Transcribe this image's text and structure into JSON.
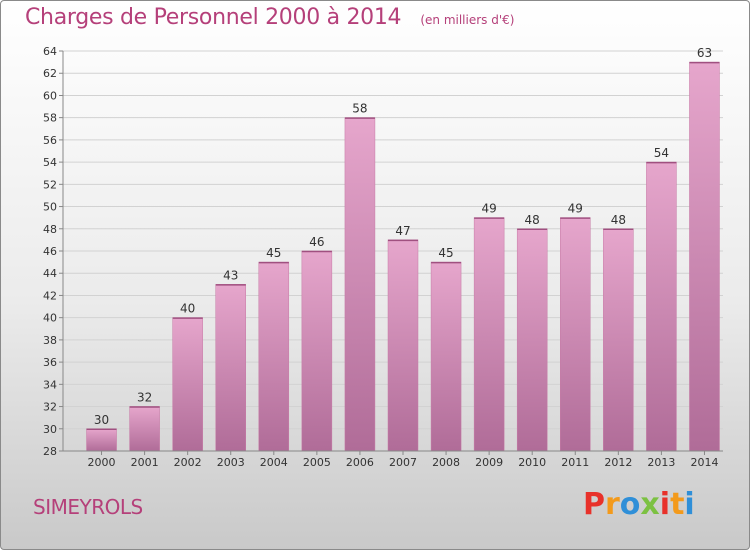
{
  "header": {
    "title": "Charges de Personnel 2000 à 2014",
    "subtitle": "(en milliers d'€)"
  },
  "footer": {
    "commune": "SIMEYROLS",
    "brand": "Proxiti"
  },
  "colors": {
    "accent": "#b5407a",
    "bar_top": "#e6a6cc",
    "bar_bottom": "#b06c98",
    "brand_letters": [
      "#e8312a",
      "#f39a1b",
      "#2f8fd8",
      "#7cc142",
      "#e8312a",
      "#f39a1b",
      "#2f8fd8"
    ]
  },
  "chart_data": {
    "type": "bar",
    "categories": [
      "2000",
      "2001",
      "2002",
      "2003",
      "2004",
      "2005",
      "2006",
      "2007",
      "2008",
      "2009",
      "2010",
      "2011",
      "2012",
      "2013",
      "2014"
    ],
    "values": [
      30,
      32,
      40,
      43,
      45,
      46,
      58,
      47,
      45,
      49,
      48,
      49,
      48,
      54,
      63
    ],
    "title": "Charges de Personnel 2000 à 2014",
    "ylim": [
      28,
      64
    ],
    "yticks": [
      28,
      30,
      32,
      34,
      36,
      38,
      40,
      42,
      44,
      46,
      48,
      50,
      52,
      54,
      56,
      58,
      60,
      62,
      64
    ],
    "grid": true
  }
}
